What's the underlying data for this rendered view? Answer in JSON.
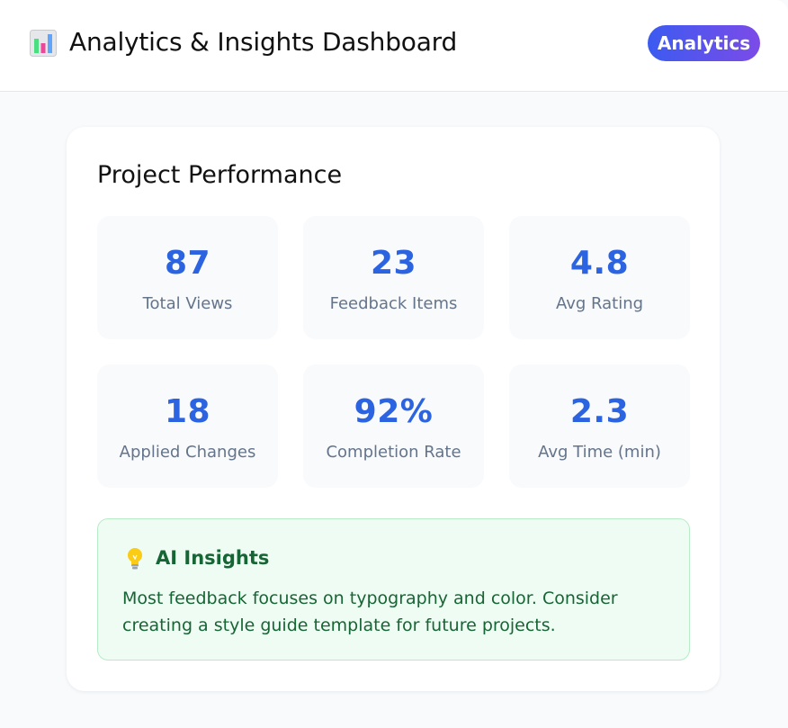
{
  "header": {
    "icon": "bar-chart-icon",
    "title": "Analytics & Insights Dashboard",
    "badge_label": "Analytics"
  },
  "card": {
    "title": "Project Performance",
    "metrics": [
      {
        "value": "87",
        "label": "Total Views"
      },
      {
        "value": "23",
        "label": "Feedback Items"
      },
      {
        "value": "4.8",
        "label": "Avg Rating"
      },
      {
        "value": "18",
        "label": "Applied Changes"
      },
      {
        "value": "92%",
        "label": "Completion Rate"
      },
      {
        "value": "2.3",
        "label": "Avg Time (min)"
      }
    ],
    "insights": {
      "icon": "lightbulb-icon",
      "title": "AI Insights",
      "text": "Most feedback focuses on typography and color. Consider creating a style guide template for future projects."
    }
  },
  "colors": {
    "metric_value": "#2b63e0",
    "metric_label": "#64748b",
    "badge_gradient_start": "#3b5bf0",
    "badge_gradient_end": "#7c4be8",
    "insights_bg": "#effcf3",
    "insights_border": "#b7ecc7",
    "insights_text": "#166534"
  }
}
